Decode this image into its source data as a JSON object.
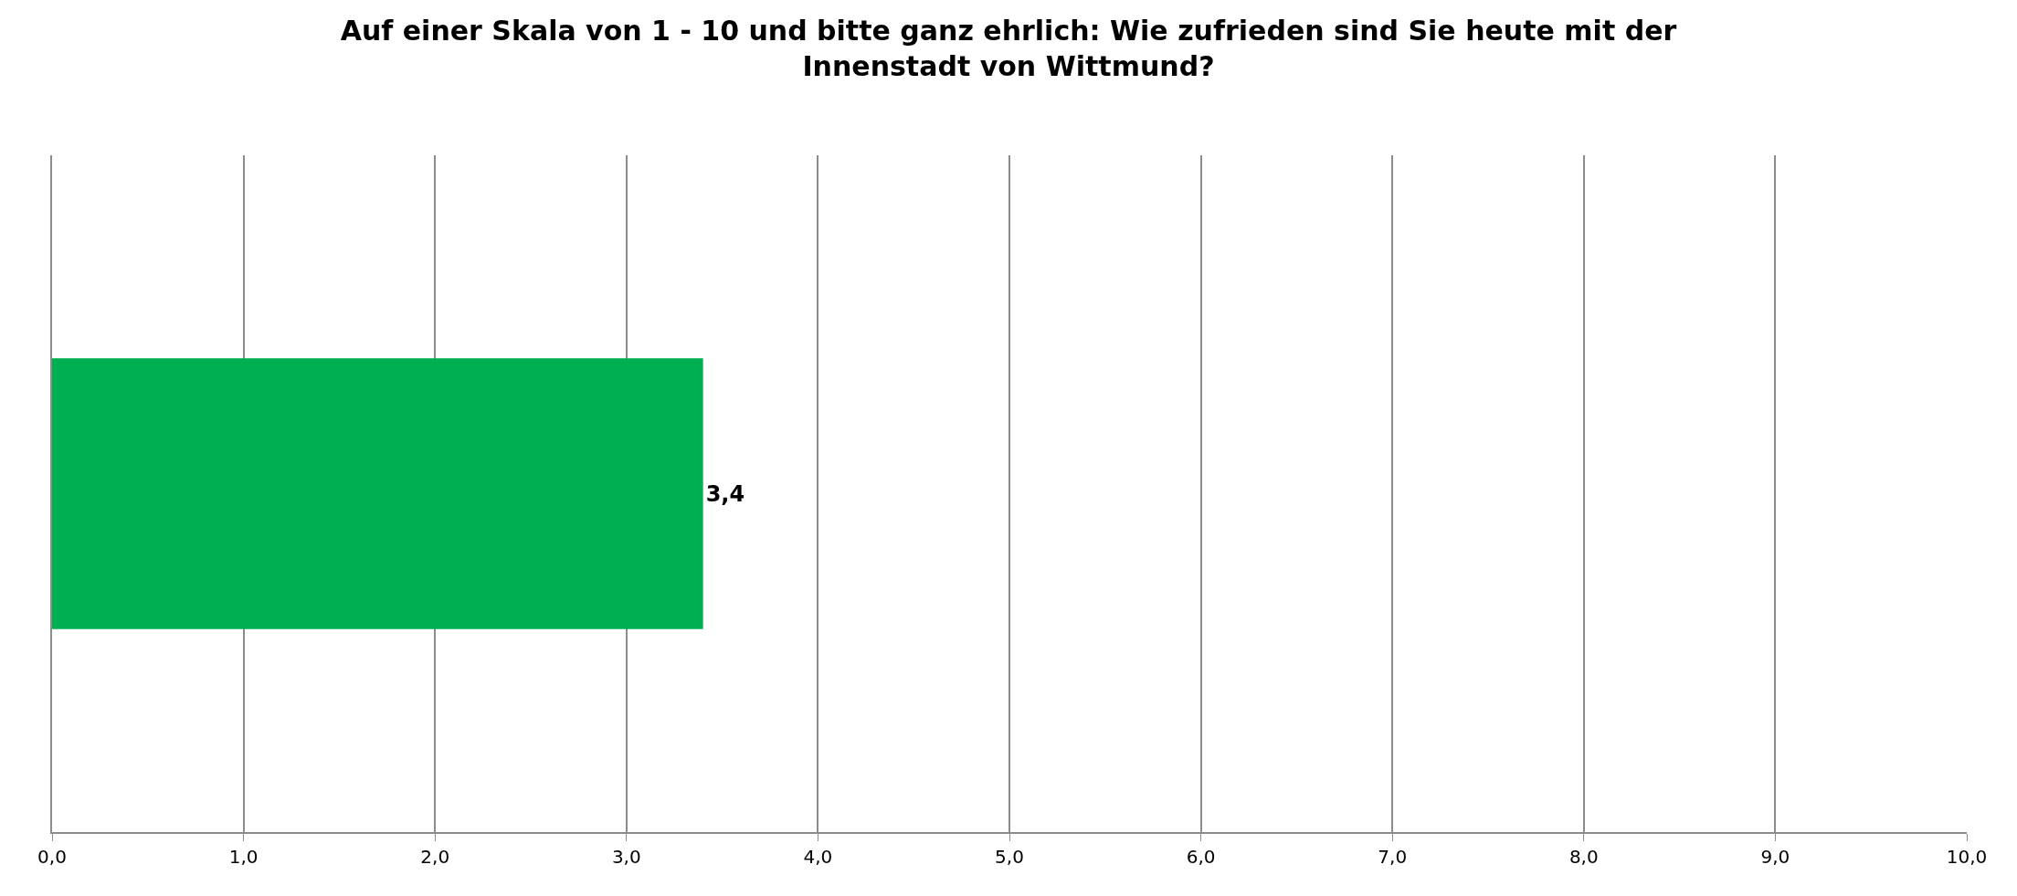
{
  "chart_data": {
    "type": "bar",
    "orientation": "horizontal",
    "title": "Auf einer Skala von 1 - 10 und bitte ganz ehrlich: Wie zufrieden sind Sie heute mit der\nInnenstadt von Wittmund?",
    "categories": [
      null
    ],
    "series": [
      {
        "color": "#00b050",
        "values": [
          3.4
        ],
        "value_labels": [
          "3,4"
        ]
      }
    ],
    "xlim": [
      0,
      10
    ],
    "xticks": [
      {
        "value": 0,
        "label": "0,0"
      },
      {
        "value": 1,
        "label": "1,0"
      },
      {
        "value": 2,
        "label": "2,0"
      },
      {
        "value": 3,
        "label": "3,0"
      },
      {
        "value": 4,
        "label": "4,0"
      },
      {
        "value": 5,
        "label": "5,0"
      },
      {
        "value": 6,
        "label": "6,0"
      },
      {
        "value": 7,
        "label": "7,0"
      },
      {
        "value": 8,
        "label": "8,0"
      },
      {
        "value": 9,
        "label": "9,0"
      },
      {
        "value": 10,
        "label": "10,0"
      }
    ],
    "grid": "x"
  }
}
